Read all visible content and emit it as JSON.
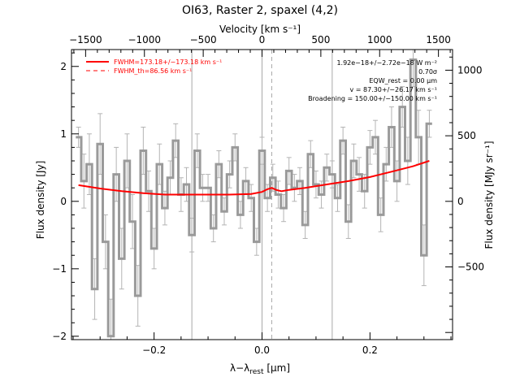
{
  "chart_data": {
    "type": "line",
    "title": "OI63, Raster 2, spaxel (4,2)",
    "top_axis": {
      "label": "Velocity [km s⁻¹]",
      "ticks": [
        -1500,
        -1000,
        -500,
        0,
        500,
        1000,
        1500
      ],
      "tick_labels": [
        "−1500",
        "−1000",
        "−500",
        "0",
        "500",
        "1000",
        "1500"
      ]
    },
    "x_axis": {
      "label": "λ−λ",
      "label_sub": "rest",
      "label_unit": " [μm]",
      "range": [
        -0.353,
        0.353
      ],
      "ticks": [
        -0.2,
        0.0,
        0.2
      ],
      "tick_labels": [
        "−0.2",
        "0.0",
        "0.2"
      ]
    },
    "y_axis": {
      "label": "Flux density [Jy]",
      "range": [
        -2.05,
        2.25
      ],
      "ticks": [
        -2,
        -1,
        0,
        1,
        2
      ],
      "tick_labels": [
        "−2",
        "−1",
        "0",
        "1",
        "2"
      ]
    },
    "y2_axis": {
      "label": "Flux density [MJy sr⁻¹]",
      "ticks": [
        -500,
        0,
        500,
        1000
      ],
      "tick_labels": [
        "−500",
        "0",
        "500",
        "1000"
      ],
      "jy_per_unit": 0.001944
    },
    "vertical_lines": {
      "solid": [
        -0.13,
        0.0,
        0.13
      ],
      "dashed": [
        0.018
      ]
    },
    "legend": {
      "placement": "top-left",
      "entries": [
        {
          "label": "FWHM=173.18+/−173.18 km s⁻¹",
          "style": "solid",
          "color": "#ff0000"
        },
        {
          "label": "FWHM_th=86.56 km s⁻¹",
          "style": "dashed",
          "color": "#ff0000"
        }
      ]
    },
    "annotations": [
      "1.92e−18+/−2.72e−18 W m⁻²",
      "0.70σ",
      "EQW_rest = 0.00 μm",
      "v = 87.30+/−26.17 km s⁻¹",
      "Broadening = 150.00+/−150.00 km s⁻¹"
    ],
    "series": [
      {
        "name": "data",
        "color": "#9a9a9a",
        "style": "step",
        "x": [
          -0.34,
          -0.33,
          -0.32,
          -0.31,
          -0.3,
          -0.29,
          -0.28,
          -0.27,
          -0.26,
          -0.25,
          -0.24,
          -0.23,
          -0.22,
          -0.21,
          -0.2,
          -0.19,
          -0.18,
          -0.17,
          -0.16,
          -0.15,
          -0.14,
          -0.13,
          -0.12,
          -0.11,
          -0.1,
          -0.09,
          -0.08,
          -0.07,
          -0.06,
          -0.05,
          -0.04,
          -0.03,
          -0.02,
          -0.01,
          0.0,
          0.01,
          0.02,
          0.03,
          0.04,
          0.05,
          0.06,
          0.07,
          0.08,
          0.09,
          0.1,
          0.11,
          0.12,
          0.13,
          0.14,
          0.15,
          0.16,
          0.17,
          0.18,
          0.19,
          0.2,
          0.21,
          0.22,
          0.23,
          0.24,
          0.25,
          0.26,
          0.27,
          0.28,
          0.29,
          0.3,
          0.31
        ],
        "y": [
          0.95,
          0.3,
          0.55,
          -1.3,
          0.85,
          -0.6,
          -2.0,
          0.4,
          -0.85,
          0.6,
          -0.3,
          -1.4,
          0.75,
          0.15,
          -0.7,
          0.55,
          -0.1,
          0.35,
          0.9,
          0.1,
          0.25,
          -0.5,
          0.75,
          0.2,
          0.2,
          -0.4,
          0.55,
          -0.15,
          0.4,
          0.8,
          -0.2,
          0.3,
          0.05,
          -0.6,
          0.75,
          0.05,
          0.35,
          0.1,
          -0.1,
          0.45,
          0.2,
          0.3,
          -0.35,
          0.7,
          0.25,
          0.1,
          0.5,
          0.4,
          0.05,
          0.9,
          -0.3,
          0.6,
          0.4,
          0.15,
          0.8,
          0.95,
          -0.2,
          0.55,
          1.1,
          0.3,
          1.4,
          0.6,
          2.1,
          0.95,
          -0.8,
          1.15
        ],
        "err": [
          0.15,
          0.4,
          0.45,
          0.45,
          0.45,
          0.4,
          0.55,
          0.4,
          0.45,
          0.4,
          0.4,
          0.45,
          0.35,
          0.3,
          0.3,
          0.3,
          0.25,
          0.25,
          0.25,
          0.25,
          0.25,
          0.25,
          0.25,
          0.2,
          0.2,
          0.2,
          0.2,
          0.2,
          0.2,
          0.2,
          0.2,
          0.2,
          0.2,
          0.2,
          0.2,
          0.2,
          0.2,
          0.2,
          0.2,
          0.2,
          0.2,
          0.2,
          0.2,
          0.2,
          0.2,
          0.2,
          0.2,
          0.2,
          0.2,
          0.2,
          0.25,
          0.25,
          0.25,
          0.25,
          0.25,
          0.25,
          0.25,
          0.25,
          0.3,
          0.3,
          0.3,
          0.35,
          0.4,
          0.4,
          0.45,
          0.2
        ]
      },
      {
        "name": "fit",
        "color": "#ff0000",
        "style": "line",
        "x": [
          -0.34,
          -0.3,
          -0.26,
          -0.22,
          -0.18,
          -0.14,
          -0.1,
          -0.06,
          -0.02,
          0.0,
          0.01,
          0.018,
          0.026,
          0.036,
          0.05,
          0.08,
          0.12,
          0.16,
          0.2,
          0.24,
          0.28,
          0.31
        ],
        "y": [
          0.24,
          0.19,
          0.15,
          0.12,
          0.1,
          0.1,
          0.1,
          0.1,
          0.11,
          0.14,
          0.18,
          0.2,
          0.17,
          0.15,
          0.17,
          0.2,
          0.25,
          0.3,
          0.36,
          0.44,
          0.52,
          0.6
        ]
      }
    ]
  }
}
